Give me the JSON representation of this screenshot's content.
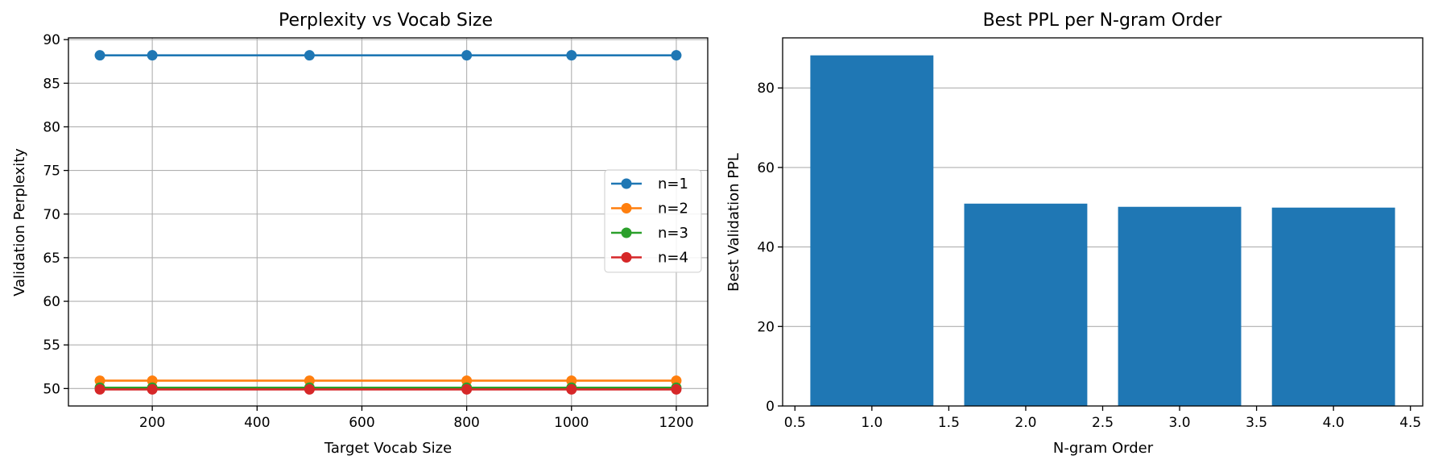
{
  "chart_data": [
    {
      "type": "line",
      "title": "Perplexity vs Vocab Size",
      "xlabel": "Target Vocab Size",
      "ylabel": "Validation Perplexity",
      "x": [
        100,
        200,
        500,
        800,
        1000,
        1200
      ],
      "xlim": [
        40,
        1260
      ],
      "ylim": [
        48,
        90.2
      ],
      "xticks": [
        200,
        400,
        600,
        800,
        1000,
        1200
      ],
      "yticks": [
        50,
        55,
        60,
        65,
        70,
        75,
        80,
        85,
        90
      ],
      "grid": true,
      "legend_position": "center-right",
      "series": [
        {
          "name": "n=1",
          "color": "#1f77b4",
          "values": [
            88.2,
            88.2,
            88.2,
            88.2,
            88.2,
            88.2
          ]
        },
        {
          "name": "n=2",
          "color": "#ff7f0e",
          "values": [
            50.9,
            50.9,
            50.9,
            50.9,
            50.9,
            50.9
          ]
        },
        {
          "name": "n=3",
          "color": "#2ca02c",
          "values": [
            50.1,
            50.1,
            50.1,
            50.1,
            50.1,
            50.1
          ]
        },
        {
          "name": "n=4",
          "color": "#d62728",
          "values": [
            49.9,
            49.9,
            49.9,
            49.9,
            49.9,
            49.9
          ]
        }
      ]
    },
    {
      "type": "bar",
      "title": "Best PPL per N-gram Order",
      "xlabel": "N-gram Order",
      "ylabel": "Best Validation PPL",
      "categories": [
        1,
        2,
        3,
        4
      ],
      "values": [
        88.2,
        50.9,
        50.1,
        49.9
      ],
      "bar_color": "#1f77b4",
      "xlim": [
        0.42,
        4.58
      ],
      "ylim": [
        0,
        92.6
      ],
      "xticks": [
        0.5,
        1.0,
        1.5,
        2.0,
        2.5,
        3.0,
        3.5,
        4.0,
        4.5
      ],
      "xtick_labels": [
        "0.5",
        "1.0",
        "1.5",
        "2.0",
        "2.5",
        "3.0",
        "3.5",
        "4.0",
        "4.5"
      ],
      "yticks": [
        0,
        20,
        40,
        60,
        80
      ],
      "grid": "y"
    }
  ]
}
